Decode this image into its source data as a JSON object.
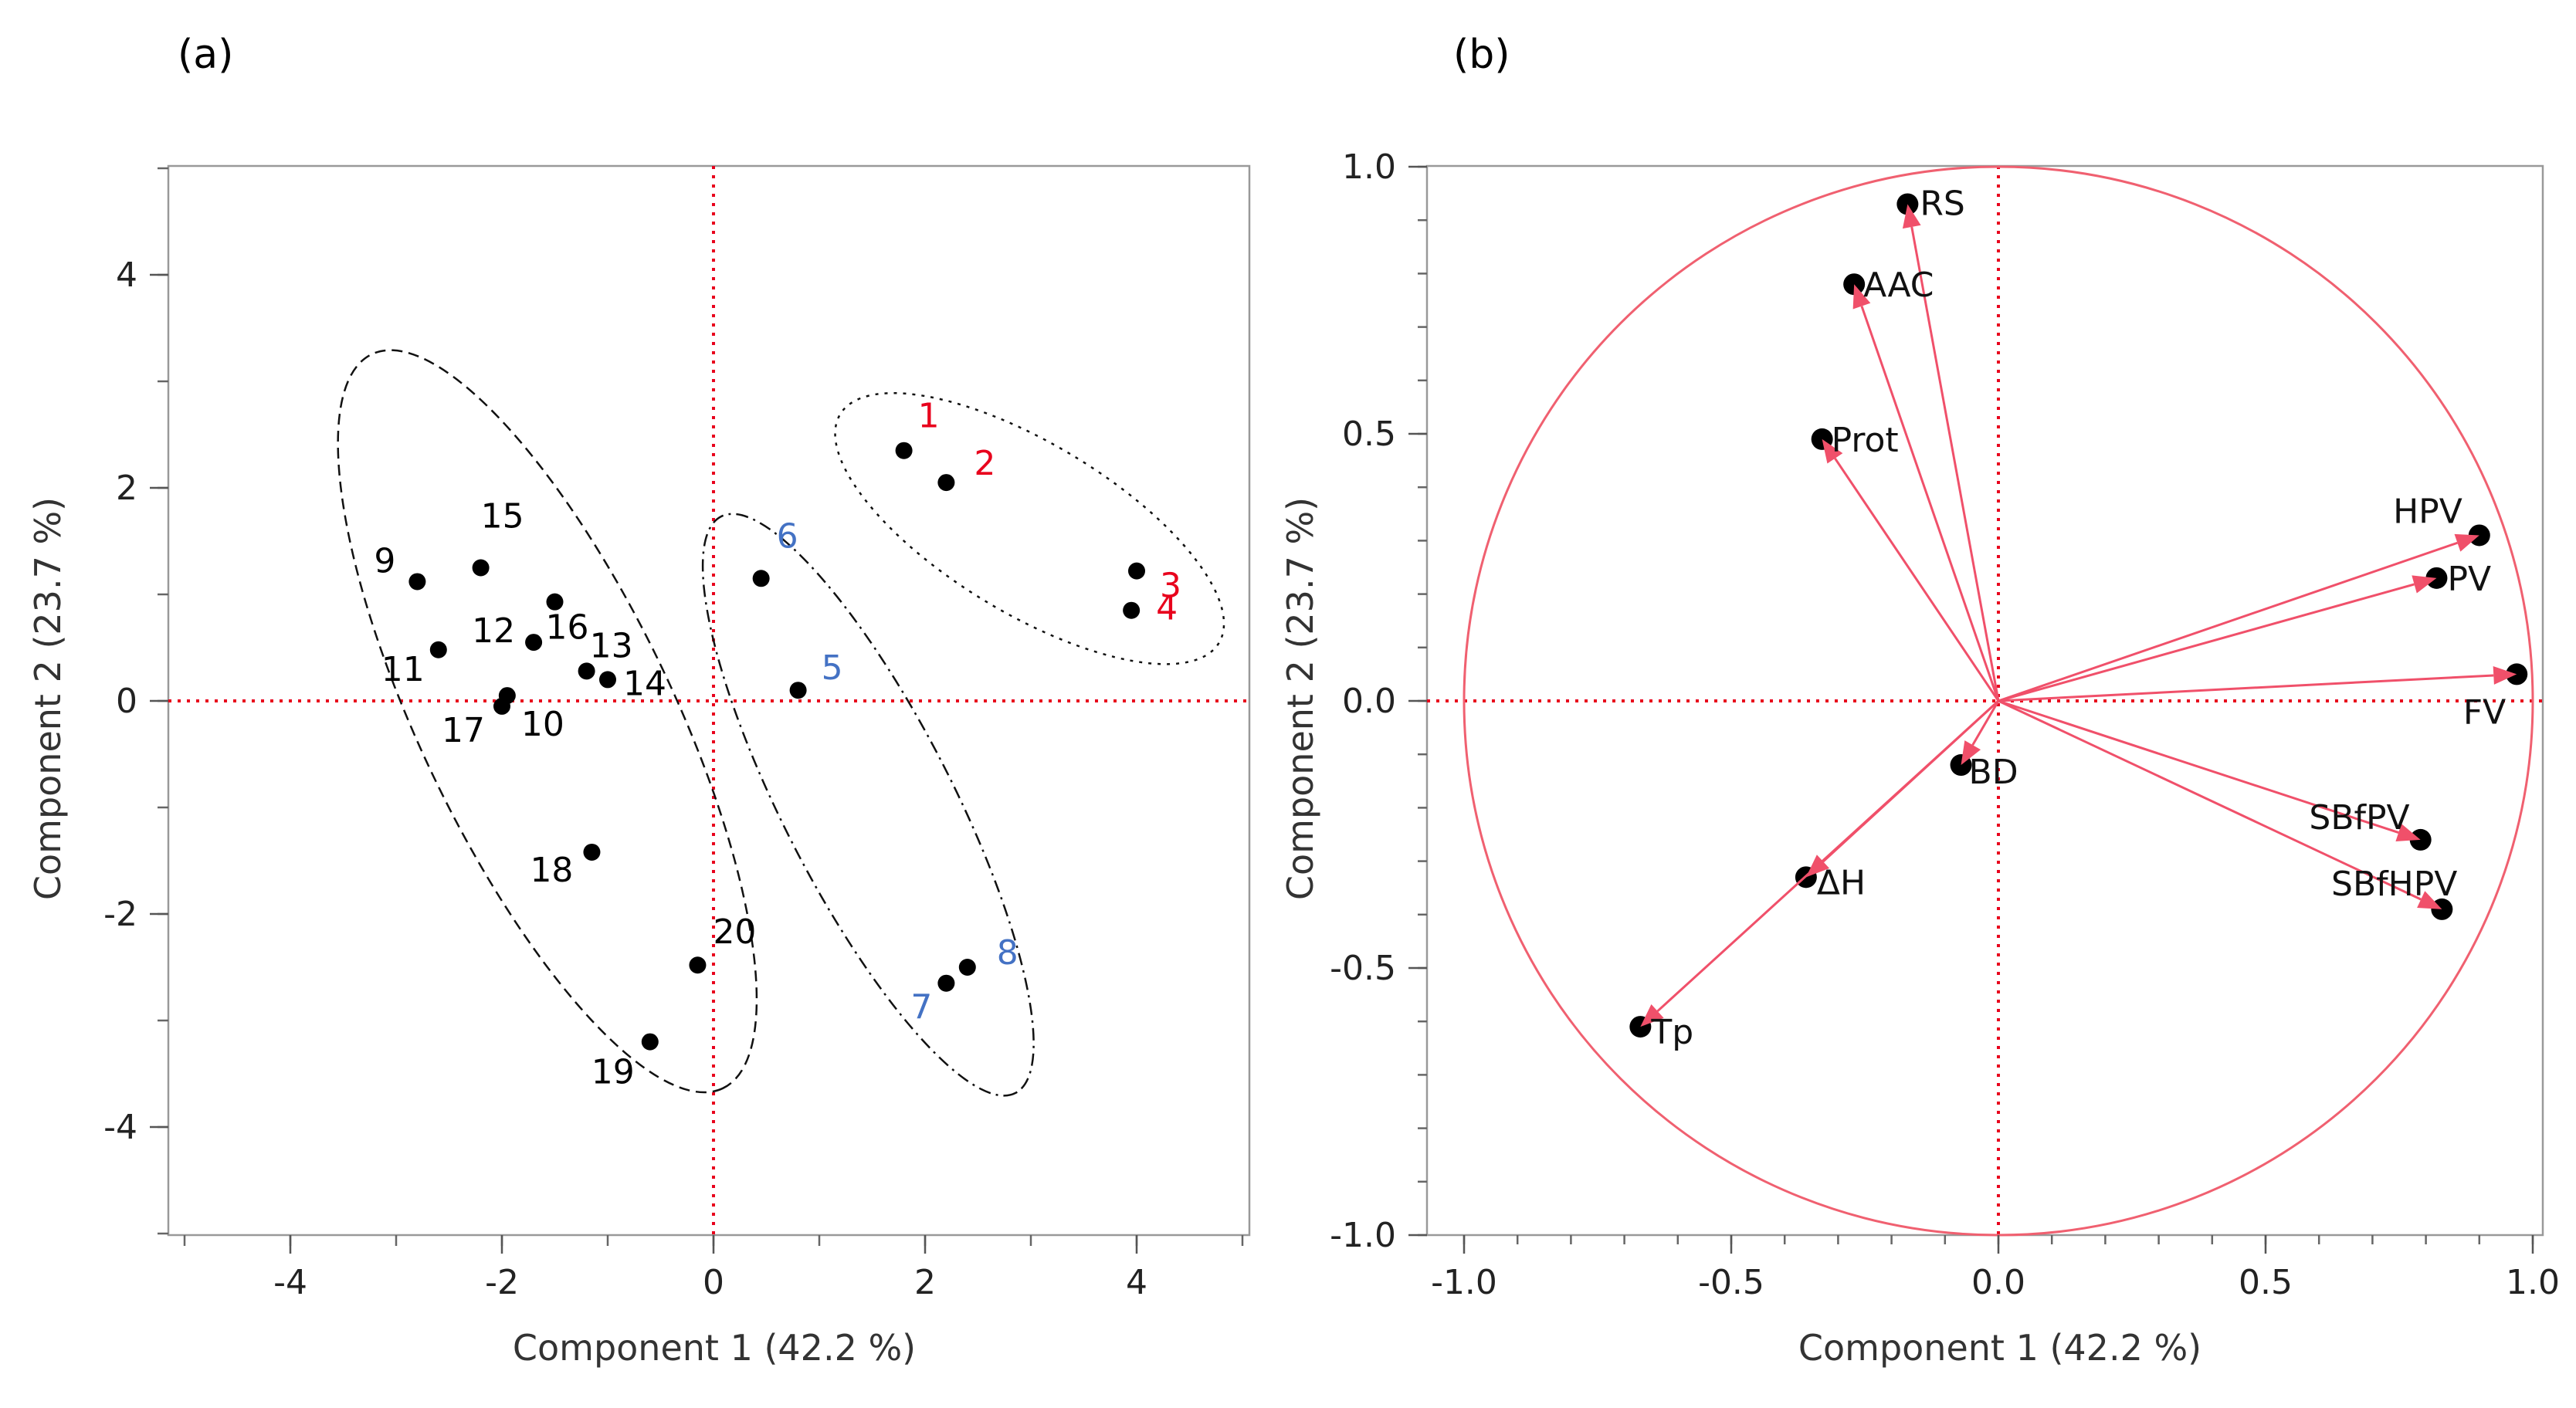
{
  "chart_data": [
    {
      "type": "scatter",
      "panel_label": "(a)",
      "xlabel": "Component 1  (42.2 %)",
      "ylabel": "Component 2  (23.7 %)",
      "xlim": [
        -5,
        5
      ],
      "ylim": [
        -5,
        5
      ],
      "x_ticks": [
        -4,
        -2,
        0,
        2,
        4
      ],
      "y_ticks": [
        -4,
        -2,
        0,
        2,
        4
      ],
      "x_tick_labels": [
        "-4",
        "-2",
        "0",
        "2",
        "4"
      ],
      "y_tick_labels": [
        "-4",
        "-2",
        "0",
        "2",
        "4"
      ],
      "reference_lines": {
        "x": 0,
        "y": 0,
        "color": "#e8001c",
        "style": "dotted"
      },
      "colors": {
        "group_red": "#e8001c",
        "group_blue": "#4472c4",
        "group_black": "#000000"
      },
      "points": [
        {
          "label": "1",
          "x": 1.8,
          "y": 2.35,
          "group": "group_red"
        },
        {
          "label": "2",
          "x": 2.2,
          "y": 2.05,
          "group": "group_red"
        },
        {
          "label": "3",
          "x": 4.0,
          "y": 1.22,
          "group": "group_red"
        },
        {
          "label": "4",
          "x": 3.95,
          "y": 0.85,
          "group": "group_red"
        },
        {
          "label": "5",
          "x": 0.8,
          "y": 0.1,
          "group": "group_blue"
        },
        {
          "label": "6",
          "x": 0.45,
          "y": 1.15,
          "group": "group_blue"
        },
        {
          "label": "7",
          "x": 2.2,
          "y": -2.65,
          "group": "group_blue"
        },
        {
          "label": "8",
          "x": 2.4,
          "y": -2.5,
          "group": "group_blue"
        },
        {
          "label": "9",
          "x": -2.8,
          "y": 1.12,
          "group": "group_black"
        },
        {
          "label": "10",
          "x": -1.95,
          "y": 0.05,
          "group": "group_black"
        },
        {
          "label": "11",
          "x": -2.6,
          "y": 0.48,
          "group": "group_black"
        },
        {
          "label": "12",
          "x": -1.7,
          "y": 0.55,
          "group": "group_black"
        },
        {
          "label": "13",
          "x": -1.2,
          "y": 0.28,
          "group": "group_black"
        },
        {
          "label": "14",
          "x": -1.0,
          "y": 0.2,
          "group": "group_black"
        },
        {
          "label": "15",
          "x": -2.2,
          "y": 1.25,
          "group": "group_black"
        },
        {
          "label": "16",
          "x": -1.5,
          "y": 0.93,
          "group": "group_black"
        },
        {
          "label": "17",
          "x": -2.0,
          "y": -0.05,
          "group": "group_black"
        },
        {
          "label": "18",
          "x": -1.15,
          "y": -1.42,
          "group": "group_black"
        },
        {
          "label": "19",
          "x": -0.6,
          "y": -3.2,
          "group": "group_black"
        },
        {
          "label": "20",
          "x": -0.15,
          "y": -2.48,
          "group": "group_black"
        }
      ],
      "clusters": [
        {
          "name": "cluster-red",
          "style": "dotted",
          "members": [
            "1",
            "2",
            "3",
            "4"
          ]
        },
        {
          "name": "cluster-blue",
          "style": "dash-dot",
          "members": [
            "5",
            "6",
            "7",
            "8"
          ]
        },
        {
          "name": "cluster-black",
          "style": "dashed",
          "members": [
            "9",
            "10",
            "11",
            "12",
            "13",
            "14",
            "15",
            "16",
            "17",
            "18",
            "19",
            "20"
          ]
        }
      ]
    },
    {
      "type": "scatter",
      "subtype": "loading-plot",
      "panel_label": "(b)",
      "xlabel": "Component 1  (42.2 %)",
      "ylabel": "Component 2  (23.7 %)",
      "xlim": [
        -1.0,
        1.0
      ],
      "ylim": [
        -1.0,
        1.0
      ],
      "x_ticks": [
        -1.0,
        -0.5,
        0.0,
        0.5,
        1.0
      ],
      "y_ticks": [
        -1.0,
        -0.5,
        0.0,
        0.5,
        1.0
      ],
      "x_tick_labels": [
        "-1.0",
        "-0.5",
        "0.0",
        "0.5",
        "1.0"
      ],
      "y_tick_labels": [
        "-1.0",
        "-0.5",
        "0.0",
        "0.5",
        "1.0"
      ],
      "unit_circle": true,
      "reference_lines": {
        "x": 0,
        "y": 0,
        "color": "#e8001c",
        "style": "dotted"
      },
      "colors": {
        "vector": "#f0506a",
        "circle": "#f06070",
        "point": "#000000"
      },
      "loadings": [
        {
          "label": "RS",
          "x": -0.17,
          "y": 0.93
        },
        {
          "label": "AAC",
          "x": -0.27,
          "y": 0.78
        },
        {
          "label": "Prot",
          "x": -0.33,
          "y": 0.49
        },
        {
          "label": "HPV",
          "x": 0.9,
          "y": 0.31
        },
        {
          "label": "PV",
          "x": 0.82,
          "y": 0.23
        },
        {
          "label": "FV",
          "x": 0.97,
          "y": 0.05
        },
        {
          "label": "BD",
          "x": -0.07,
          "y": -0.12
        },
        {
          "label": "SBfPV",
          "x": 0.79,
          "y": -0.26
        },
        {
          "label": "SBfHPV",
          "x": 0.83,
          "y": -0.39
        },
        {
          "label": "ΔH",
          "x": -0.36,
          "y": -0.33
        },
        {
          "label": "Tp",
          "x": -0.67,
          "y": -0.61
        }
      ]
    }
  ]
}
